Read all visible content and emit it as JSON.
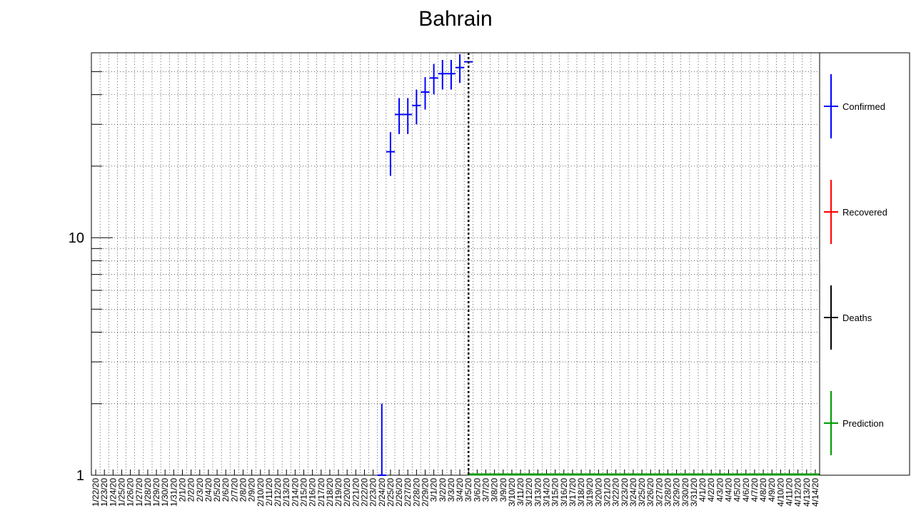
{
  "chart_data": {
    "type": "scatter",
    "title": "Bahrain",
    "xlabel": "",
    "ylabel": "",
    "y_scale": "log",
    "ylim": [
      1,
      60
    ],
    "y_major_ticks": [
      "1",
      "10"
    ],
    "grid": true,
    "legend_position": "right",
    "categories": [
      "1/22/20",
      "1/23/20",
      "1/24/20",
      "1/25/20",
      "1/26/20",
      "1/27/20",
      "1/28/20",
      "1/29/20",
      "1/30/20",
      "1/31/20",
      "2/1/20",
      "2/2/20",
      "2/3/20",
      "2/4/20",
      "2/5/20",
      "2/6/20",
      "2/7/20",
      "2/8/20",
      "2/9/20",
      "2/10/20",
      "2/11/20",
      "2/12/20",
      "2/13/20",
      "2/14/20",
      "2/15/20",
      "2/16/20",
      "2/17/20",
      "2/18/20",
      "2/19/20",
      "2/20/20",
      "2/21/20",
      "2/22/20",
      "2/23/20",
      "2/24/20",
      "2/25/20",
      "2/26/20",
      "2/27/20",
      "2/28/20",
      "2/29/20",
      "3/1/20",
      "3/2/20",
      "3/3/20",
      "3/4/20",
      "3/5/20",
      "3/6/20",
      "3/7/20",
      "3/8/20",
      "3/9/20",
      "3/10/20",
      "3/11/20",
      "3/12/20",
      "3/13/20",
      "3/14/20",
      "3/15/20",
      "3/16/20",
      "3/17/20",
      "3/18/20",
      "3/19/20",
      "3/20/20",
      "3/21/20",
      "3/22/20",
      "3/23/20",
      "3/24/20",
      "3/25/20",
      "3/26/20",
      "3/27/20",
      "3/28/20",
      "3/29/20",
      "3/30/20",
      "3/31/20",
      "4/1/20",
      "4/2/20",
      "4/3/20",
      "4/4/20",
      "4/5/20",
      "4/6/20",
      "4/7/20",
      "4/8/20",
      "4/9/20",
      "4/10/20",
      "4/11/20",
      "4/12/20",
      "4/13/20",
      "4/14/20"
    ],
    "current_date_marker": "3/5/20",
    "series": [
      {
        "name": "Confirmed",
        "color": "#0000ff",
        "points": [
          {
            "x": "2/24/20",
            "y": 1,
            "err": 1
          },
          {
            "x": "2/25/20",
            "y": 23,
            "err": 4.8
          },
          {
            "x": "2/26/20",
            "y": 33,
            "err": 5.7
          },
          {
            "x": "2/27/20",
            "y": 33,
            "err": 5.7
          },
          {
            "x": "2/28/20",
            "y": 36,
            "err": 6
          },
          {
            "x": "2/29/20",
            "y": 41,
            "err": 6.4
          },
          {
            "x": "3/1/20",
            "y": 47,
            "err": 6.9
          },
          {
            "x": "3/2/20",
            "y": 49,
            "err": 7
          },
          {
            "x": "3/3/20",
            "y": 49,
            "err": 7
          },
          {
            "x": "3/4/20",
            "y": 52,
            "err": 7.2
          },
          {
            "x": "3/5/20",
            "y": 55,
            "err": 0
          }
        ]
      },
      {
        "name": "Recovered",
        "color": "#ff0000",
        "points": []
      },
      {
        "name": "Deaths",
        "color": "#000000",
        "points": []
      },
      {
        "name": "Prediction",
        "color": "#009900",
        "from": "3/5/20",
        "to": "4/14/20",
        "y": 1
      }
    ]
  }
}
